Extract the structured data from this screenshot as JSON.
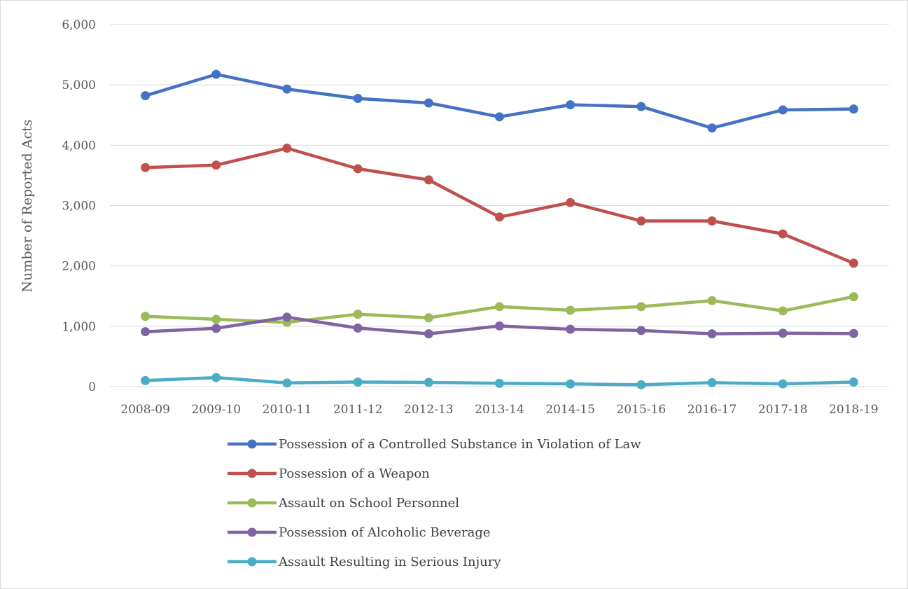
{
  "chart_data": {
    "type": "line",
    "title": "",
    "xlabel": "",
    "ylabel": "Number of Reported Acts",
    "categories": [
      "2008-09",
      "2009-10",
      "2010-11",
      "2011-12",
      "2012-13",
      "2013-14",
      "2014-15",
      "2015-16",
      "2016-17",
      "2017-18",
      "2018-19"
    ],
    "ylim": [
      0,
      6000
    ],
    "yticks": [
      0,
      1000,
      2000,
      3000,
      4000,
      5000,
      6000
    ],
    "ytick_labels": [
      "0",
      "1,000",
      "2,000",
      "3,000",
      "4,000",
      "5,000",
      "6,000"
    ],
    "grid": true,
    "legend_position": "bottom",
    "series": [
      {
        "name": "Possession of a Controlled Substance in Violation of Law",
        "color": "#4472C4",
        "values": [
          4820,
          5175,
          4930,
          4775,
          4700,
          4470,
          4670,
          4640,
          4285,
          4585,
          4600
        ]
      },
      {
        "name": "Possession of a Weapon",
        "color": "#C0504D",
        "values": [
          3630,
          3670,
          3950,
          3610,
          3425,
          2810,
          3050,
          2745,
          2745,
          2530,
          2045
        ]
      },
      {
        "name": "Assault on School Personnel",
        "color": "#9BBB59",
        "values": [
          1165,
          1115,
          1065,
          1200,
          1140,
          1325,
          1265,
          1325,
          1425,
          1255,
          1490
        ]
      },
      {
        "name": "Possession of Alcoholic Beverage",
        "color": "#8064A2",
        "values": [
          910,
          965,
          1150,
          970,
          875,
          1005,
          950,
          930,
          875,
          885,
          880
        ]
      },
      {
        "name": "Assault Resulting in Serious Injury",
        "color": "#4BACC6",
        "values": [
          100,
          150,
          60,
          75,
          70,
          55,
          45,
          30,
          65,
          45,
          75
        ]
      }
    ]
  }
}
